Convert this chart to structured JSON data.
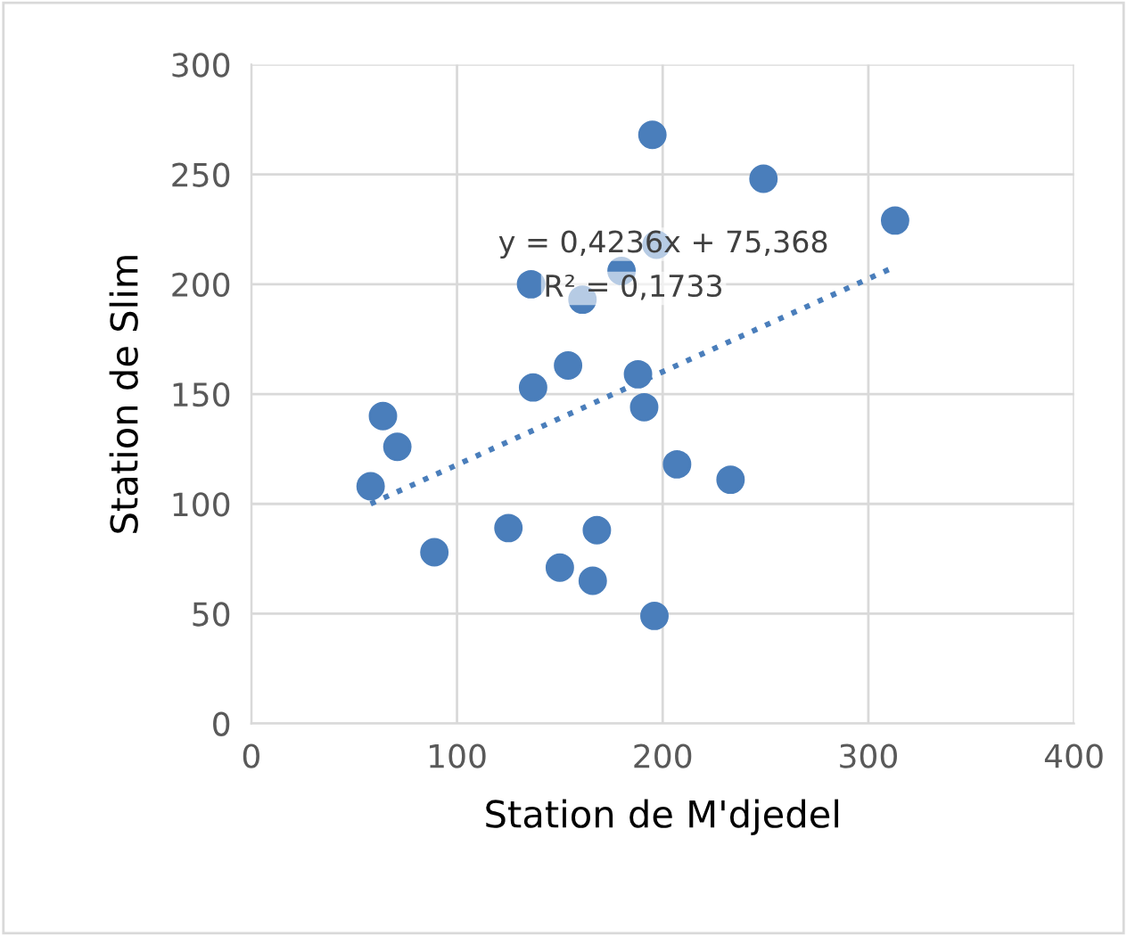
{
  "chart_data": {
    "type": "scatter",
    "xlabel": "Station de M'djedel",
    "ylabel": "Station de Slim",
    "xlim": [
      0,
      400
    ],
    "xticks": [
      0,
      100,
      200,
      300,
      400
    ],
    "ylim": [
      0,
      300
    ],
    "yticks": [
      0,
      50,
      100,
      150,
      200,
      250,
      300
    ],
    "grid": true,
    "marker": "circle",
    "series": [
      {
        "color": "#4a7ebb",
        "x": [
          58,
          64,
          71,
          89,
          125,
          136,
          137,
          150,
          154,
          161,
          166,
          168,
          180,
          188,
          191,
          195,
          196,
          197,
          207,
          233,
          249,
          313
        ],
        "values": [
          108,
          140,
          126,
          78,
          89,
          200,
          153,
          71,
          163,
          193,
          65,
          88,
          206,
          159,
          144,
          268,
          49,
          218,
          118,
          111,
          248,
          229
        ]
      },
      {
        "type": "line",
        "color": "#4a7ebb",
        "line_style": "dotted",
        "marker": "none",
        "x": [
          58,
          313
        ],
        "values": [
          100,
          208
        ]
      }
    ],
    "annotations": [
      "y = 0,4236x + 75,368",
      "R² = 0,1733"
    ]
  }
}
